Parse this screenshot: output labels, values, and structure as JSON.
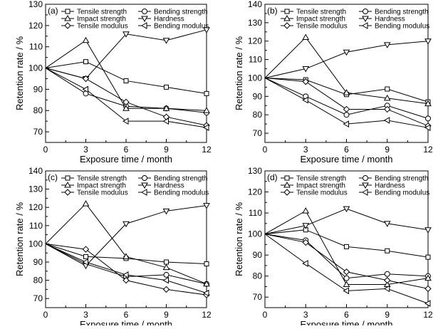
{
  "figure_caption_none": "",
  "chart_data": [
    {
      "type": "line",
      "panel_label": "(a)",
      "xlabel": "Exposure time / month",
      "ylabel": "Retention rate / %",
      "x": [
        0,
        3,
        6,
        9,
        12
      ],
      "xticks": [
        "0",
        "3",
        "6",
        "9",
        "12"
      ],
      "xlim": [
        0,
        12
      ],
      "ylim": [
        65,
        130
      ],
      "yticks": [
        "70",
        "80",
        "90",
        "100",
        "110",
        "120",
        "130"
      ],
      "grid": false,
      "legend_position": "top-right",
      "series": [
        {
          "name": "Tensile strength",
          "marker": "square",
          "values": [
            100,
            103,
            94,
            91,
            88
          ]
        },
        {
          "name": "Bending strength",
          "marker": "circle",
          "values": [
            100,
            88,
            82,
            81,
            79
          ]
        },
        {
          "name": "Impact strength",
          "marker": "triangle-up",
          "values": [
            100,
            113,
            81,
            81,
            80
          ]
        },
        {
          "name": "Hardness",
          "marker": "triangle-down",
          "values": [
            100,
            95,
            116,
            113,
            118
          ]
        },
        {
          "name": "Tensile modulus",
          "marker": "diamond",
          "values": [
            100,
            95,
            84,
            77,
            73
          ]
        },
        {
          "name": "Bending modulus",
          "marker": "triangle-left",
          "values": [
            100,
            90,
            75,
            75,
            72
          ]
        }
      ]
    },
    {
      "type": "line",
      "panel_label": "(b)",
      "xlabel": "Exposure time / month",
      "ylabel": "Retention rate / %",
      "x": [
        0,
        3,
        6,
        9,
        12
      ],
      "xticks": [
        "0",
        "3",
        "6",
        "9",
        "12"
      ],
      "xlim": [
        0,
        12
      ],
      "ylim": [
        65,
        140
      ],
      "yticks": [
        "70",
        "80",
        "90",
        "100",
        "110",
        "120",
        "130",
        "140"
      ],
      "grid": false,
      "legend_position": "top-right",
      "series": [
        {
          "name": "Tensile strength",
          "marker": "square",
          "values": [
            100,
            99,
            91,
            94,
            87
          ]
        },
        {
          "name": "Bending strength",
          "marker": "circle",
          "values": [
            100,
            90,
            80,
            85,
            78
          ]
        },
        {
          "name": "Impact strength",
          "marker": "triangle-up",
          "values": [
            100,
            122,
            92,
            89,
            86
          ]
        },
        {
          "name": "Hardness",
          "marker": "triangle-down",
          "values": [
            100,
            105,
            114,
            118,
            120
          ]
        },
        {
          "name": "Tensile modulus",
          "marker": "diamond",
          "values": [
            100,
            98,
            83,
            83,
            74
          ]
        },
        {
          "name": "Bending modulus",
          "marker": "triangle-left",
          "values": [
            100,
            88,
            75,
            77,
            73
          ]
        }
      ]
    },
    {
      "type": "line",
      "panel_label": "(c)",
      "xlabel": "Exposure time / month",
      "ylabel": "Retention rate / %",
      "x": [
        0,
        3,
        6,
        9,
        12
      ],
      "xticks": [
        "0",
        "3",
        "6",
        "9",
        "12"
      ],
      "xlim": [
        0,
        12
      ],
      "ylim": [
        65,
        140
      ],
      "yticks": [
        "70",
        "80",
        "90",
        "100",
        "110",
        "120",
        "130",
        "140"
      ],
      "grid": false,
      "legend_position": "top-right",
      "series": [
        {
          "name": "Tensile strength",
          "marker": "square",
          "values": [
            100,
            93,
            92,
            90,
            89
          ]
        },
        {
          "name": "Bending strength",
          "marker": "circle",
          "values": [
            100,
            89,
            82,
            83,
            78
          ]
        },
        {
          "name": "Impact strength",
          "marker": "triangle-up",
          "values": [
            100,
            122,
            93,
            87,
            78
          ]
        },
        {
          "name": "Hardness",
          "marker": "triangle-down",
          "values": [
            100,
            88,
            111,
            118,
            121
          ]
        },
        {
          "name": "Tensile modulus",
          "marker": "diamond",
          "values": [
            100,
            97,
            80,
            75,
            72
          ]
        },
        {
          "name": "Bending modulus",
          "marker": "triangle-left",
          "values": [
            100,
            90,
            83,
            80,
            73
          ]
        }
      ]
    },
    {
      "type": "line",
      "panel_label": "(d)",
      "xlabel": "Exposure time / month",
      "ylabel": "Retention rate / %",
      "x": [
        0,
        3,
        6,
        9,
        12
      ],
      "xticks": [
        "0",
        "3",
        "6",
        "9",
        "12"
      ],
      "xlim": [
        0,
        12
      ],
      "ylim": [
        65,
        130
      ],
      "yticks": [
        "70",
        "80",
        "90",
        "100",
        "110",
        "120",
        "130"
      ],
      "grid": false,
      "legend_position": "top-right",
      "series": [
        {
          "name": "Tensile strength",
          "marker": "square",
          "values": [
            100,
            102,
            94,
            92,
            89
          ]
        },
        {
          "name": "Bending strength",
          "marker": "circle",
          "values": [
            100,
            97,
            79,
            81,
            80
          ]
        },
        {
          "name": "Impact strength",
          "marker": "triangle-up",
          "values": [
            100,
            111,
            76,
            76,
            79
          ]
        },
        {
          "name": "Hardness",
          "marker": "triangle-down",
          "values": [
            100,
            104,
            112,
            105,
            102
          ]
        },
        {
          "name": "Tensile modulus",
          "marker": "diamond",
          "values": [
            100,
            96,
            82,
            78,
            74
          ]
        },
        {
          "name": "Bending modulus",
          "marker": "triangle-left",
          "values": [
            100,
            86,
            73,
            74,
            67
          ]
        }
      ]
    }
  ]
}
